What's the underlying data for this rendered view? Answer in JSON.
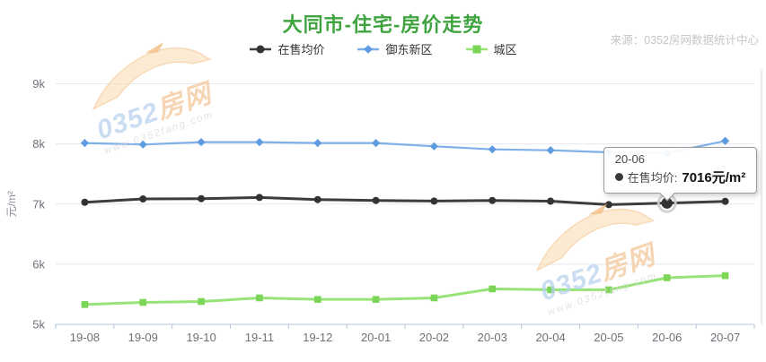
{
  "header": {
    "title": "大同市-住宅-房价走势",
    "source": "来源：0352房网数据统计中心"
  },
  "colors": {
    "title": "#3fa43f",
    "axis_label": "#6e7079",
    "axis_line": "#b3c4de",
    "gridline": "#e5e8ee",
    "right_border": "#ccd9ee"
  },
  "tooltip": {
    "title": "20-06",
    "label": "在售均价:",
    "value": "7016元/m²"
  },
  "watermark": {
    "brand_prefix": "0352",
    "brand_suffix": "房网",
    "url": "www.0352fang.com"
  },
  "chart_data": {
    "type": "line",
    "title": "大同市-住宅-房价走势",
    "xlabel": "",
    "ylabel": "元/m²",
    "ylim": [
      5000,
      9000
    ],
    "grid": true,
    "legend_position": "top",
    "categories": [
      "19-08",
      "19-09",
      "19-10",
      "19-11",
      "19-12",
      "20-01",
      "20-02",
      "20-03",
      "20-04",
      "20-05",
      "20-06",
      "20-07"
    ],
    "yticks": [
      {
        "value": 5000,
        "label": "5k"
      },
      {
        "value": 6000,
        "label": "6k"
      },
      {
        "value": 7000,
        "label": "7k"
      },
      {
        "value": 8000,
        "label": "8k"
      },
      {
        "value": 9000,
        "label": "9k"
      }
    ],
    "series": [
      {
        "id": "yudong",
        "name": "御东新区",
        "marker": "diamond",
        "line_color": "#7fb0e8",
        "marker_color": "#5e9be0",
        "line_width": 2.2,
        "values": [
          8015,
          7990,
          8030,
          8030,
          8015,
          8015,
          7960,
          7910,
          7895,
          7860,
          7850,
          8050
        ]
      },
      {
        "id": "chengqu",
        "name": "城区",
        "marker": "square",
        "line_color": "#97e377",
        "marker_color": "#7bd556",
        "line_width": 3,
        "values": [
          5330,
          5365,
          5380,
          5440,
          5415,
          5415,
          5440,
          5590,
          5575,
          5575,
          5775,
          5810
        ]
      },
      {
        "id": "avg_price",
        "name": "在售均价",
        "marker": "circle",
        "line_color": "#3d3d3d",
        "marker_color": "#333333",
        "line_width": 3,
        "values": [
          7030,
          7085,
          7090,
          7110,
          7075,
          7060,
          7050,
          7060,
          7048,
          6990,
          7016,
          7045
        ]
      }
    ],
    "legend_order": [
      "在售均价",
      "御东新区",
      "城区"
    ],
    "highlight": {
      "series": "在售均价",
      "category": "20-06",
      "value": 7016
    }
  }
}
